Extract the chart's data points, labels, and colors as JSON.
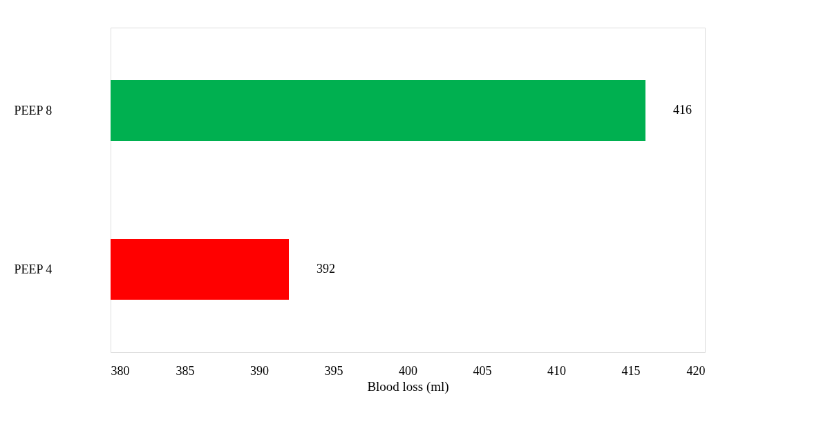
{
  "chart_data": {
    "type": "bar",
    "orientation": "horizontal",
    "xlabel": "Blood loss (ml)",
    "categories": [
      "PEEP 8",
      "PEEP 4"
    ],
    "values": [
      416,
      392
    ],
    "colors": [
      "#00b050",
      "#ff0000"
    ],
    "xlim": [
      380,
      420
    ],
    "xticks": [
      380,
      385,
      390,
      395,
      400,
      405,
      410,
      415,
      420
    ],
    "data_labels": true,
    "grid": false
  }
}
